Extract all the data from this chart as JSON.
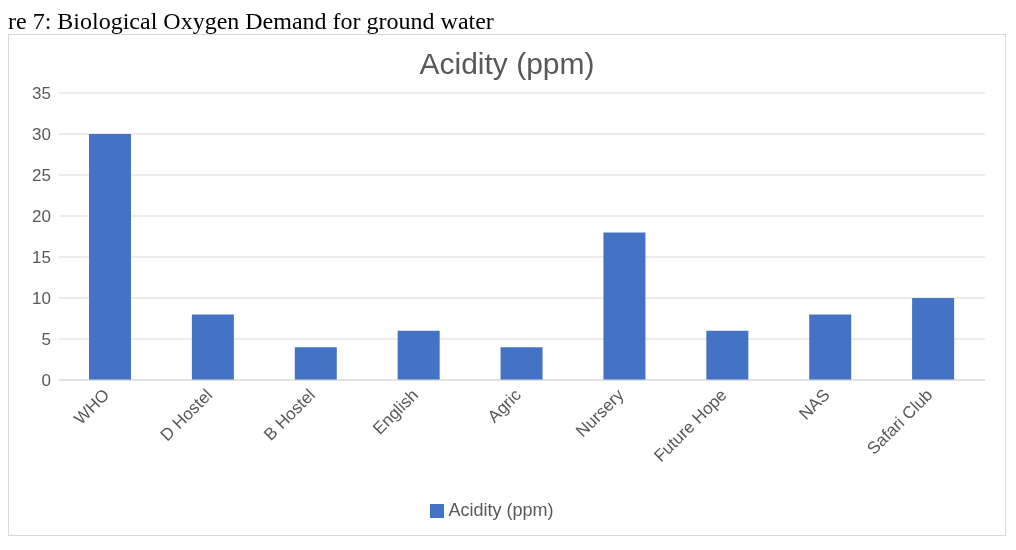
{
  "chart_data": {
    "type": "bar",
    "title": "Acidity (ppm)",
    "annotations": [
      "re 7: Biological Oxygen Demand for ground water"
    ],
    "categories": [
      "WHO",
      "D Hostel",
      "B Hostel",
      "English",
      "Agric",
      "Nursery",
      "Future Hope",
      "NAS",
      "Safari Club"
    ],
    "series": [
      {
        "name": "Acidity (ppm)",
        "color": "#4472c4",
        "values": [
          30,
          8,
          4,
          6,
          4,
          18,
          6,
          8,
          10
        ]
      }
    ],
    "ylim": [
      0,
      35
    ],
    "yticks": [
      0,
      5,
      10,
      15,
      20,
      25,
      30,
      35
    ],
    "grid": "y",
    "legend": "bottom"
  }
}
